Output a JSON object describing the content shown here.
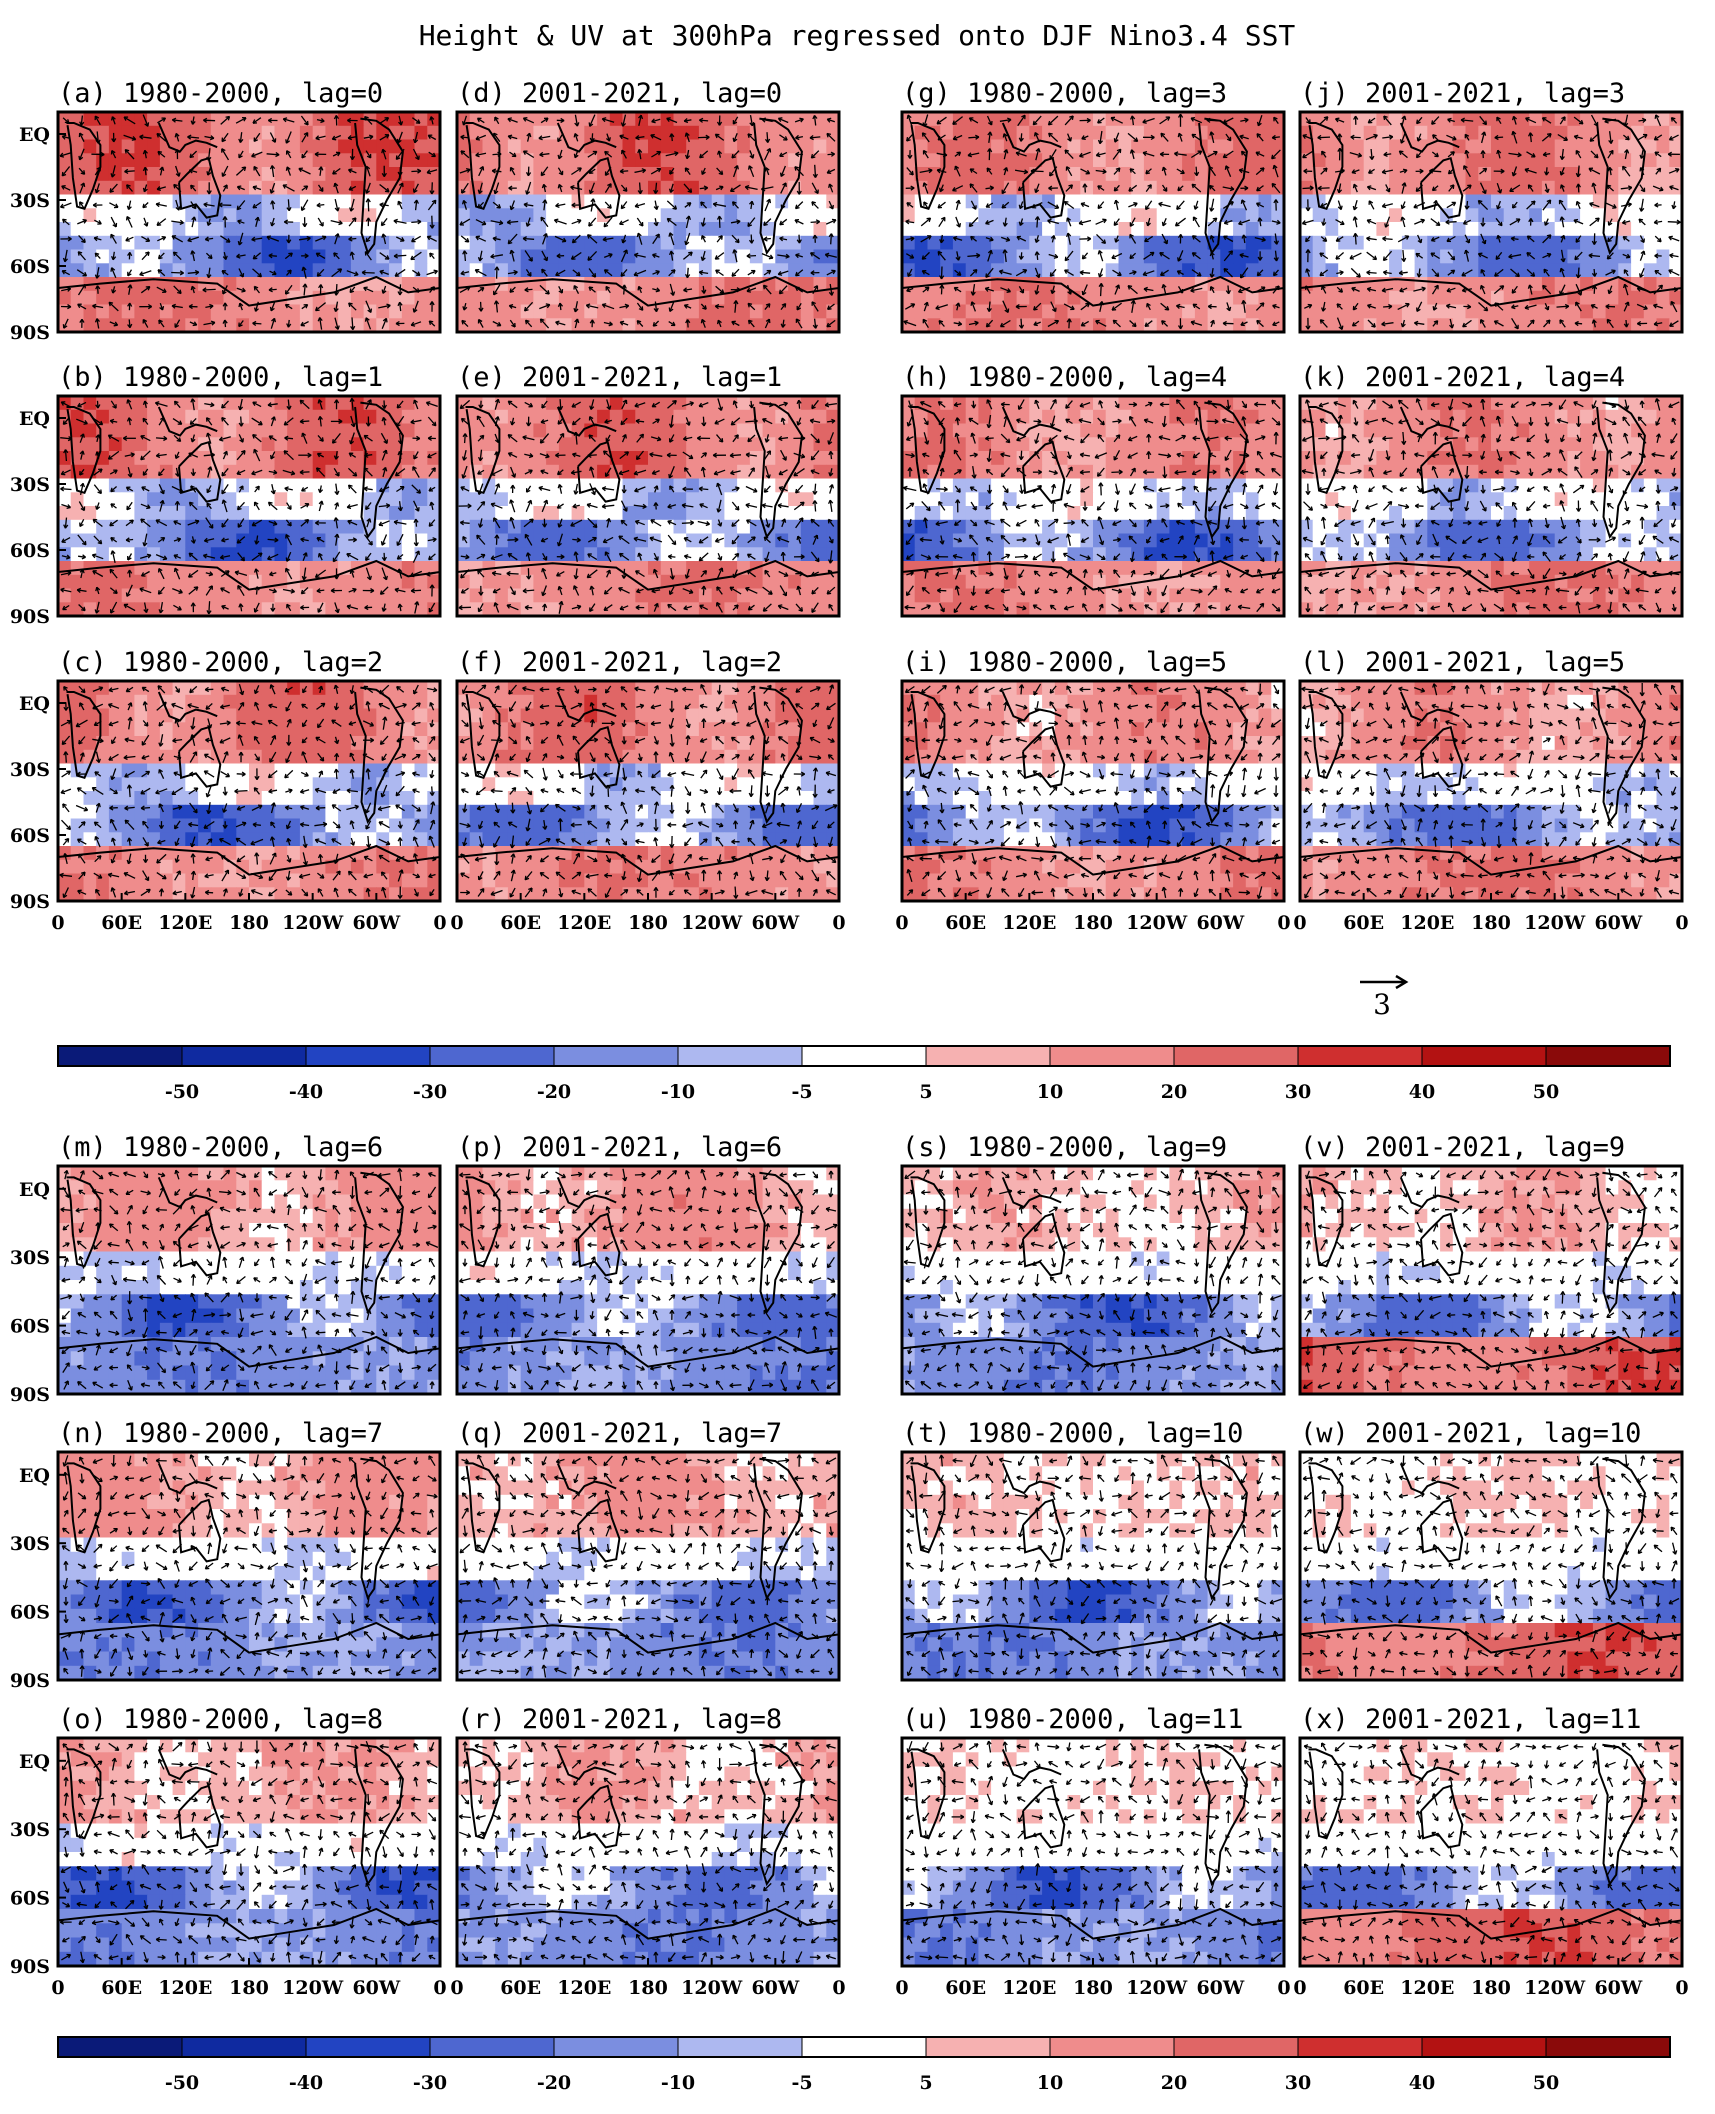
{
  "chart_data": {
    "type": "heatmap",
    "title": "Height & UV at 300hPa regressed onto DJF Nino3.4 SST",
    "variable": "300hPa geopotential height (shading) and wind (vectors)",
    "y_tick_labels": [
      "EQ",
      "30S",
      "60S",
      "90S"
    ],
    "x_tick_labels": [
      "0",
      "60E",
      "120E",
      "180",
      "120W",
      "60W",
      "0"
    ],
    "lon_range": [
      0,
      360
    ],
    "lat_range": [
      -90,
      10
    ],
    "vector_reference": {
      "label": "3"
    },
    "colorbar": {
      "levels": [
        "-50",
        "-40",
        "-30",
        "-20",
        "-10",
        "-5",
        "5",
        "10",
        "20",
        "30",
        "40",
        "50"
      ],
      "colors": [
        "#0a1a78",
        "#0f2aa0",
        "#2244c2",
        "#4e67d0",
        "#7b8ee0",
        "#adb8f0",
        "#ffffff",
        "#f6b1b1",
        "#ef8c8c",
        "#e06666",
        "#cf2f2f",
        "#b31212",
        "#8a0a0a"
      ]
    },
    "panels": [
      {
        "label": "(a) 1980-2000, lag=0",
        "period": "1980-2000",
        "lag": 0
      },
      {
        "label": "(b) 1980-2000, lag=1",
        "period": "1980-2000",
        "lag": 1
      },
      {
        "label": "(c) 1980-2000, lag=2",
        "period": "1980-2000",
        "lag": 2
      },
      {
        "label": "(d) 2001-2021, lag=0",
        "period": "2001-2021",
        "lag": 0
      },
      {
        "label": "(e) 2001-2021, lag=1",
        "period": "2001-2021",
        "lag": 1
      },
      {
        "label": "(f) 2001-2021, lag=2",
        "period": "2001-2021",
        "lag": 2
      },
      {
        "label": "(g) 1980-2000, lag=3",
        "period": "1980-2000",
        "lag": 3
      },
      {
        "label": "(h) 1980-2000, lag=4",
        "period": "1980-2000",
        "lag": 4
      },
      {
        "label": "(i) 1980-2000, lag=5",
        "period": "1980-2000",
        "lag": 5
      },
      {
        "label": "(j) 2001-2021, lag=3",
        "period": "2001-2021",
        "lag": 3
      },
      {
        "label": "(k) 2001-2021, lag=4",
        "period": "2001-2021",
        "lag": 4
      },
      {
        "label": "(l) 2001-2021, lag=5",
        "period": "2001-2021",
        "lag": 5
      },
      {
        "label": "(m) 1980-2000, lag=6",
        "period": "1980-2000",
        "lag": 6
      },
      {
        "label": "(n) 1980-2000, lag=7",
        "period": "1980-2000",
        "lag": 7
      },
      {
        "label": "(o) 1980-2000, lag=8",
        "period": "1980-2000",
        "lag": 8
      },
      {
        "label": "(p) 2001-2021, lag=6",
        "period": "2001-2021",
        "lag": 6
      },
      {
        "label": "(q) 2001-2021, lag=7",
        "period": "2001-2021",
        "lag": 7
      },
      {
        "label": "(r) 2001-2021, lag=8",
        "period": "2001-2021",
        "lag": 8
      },
      {
        "label": "(s) 1980-2000, lag=9",
        "period": "1980-2000",
        "lag": 9
      },
      {
        "label": "(t) 1980-2000, lag=10",
        "period": "1980-2000",
        "lag": 10
      },
      {
        "label": "(u) 1980-2000, lag=11",
        "period": "1980-2000",
        "lag": 11
      },
      {
        "label": "(v) 2001-2021, lag=9",
        "period": "2001-2021",
        "lag": 9
      },
      {
        "label": "(w) 2001-2021, lag=10",
        "period": "2001-2021",
        "lag": 10
      },
      {
        "label": "(x) 2001-2021, lag=11",
        "period": "2001-2021",
        "lag": 11
      }
    ]
  }
}
